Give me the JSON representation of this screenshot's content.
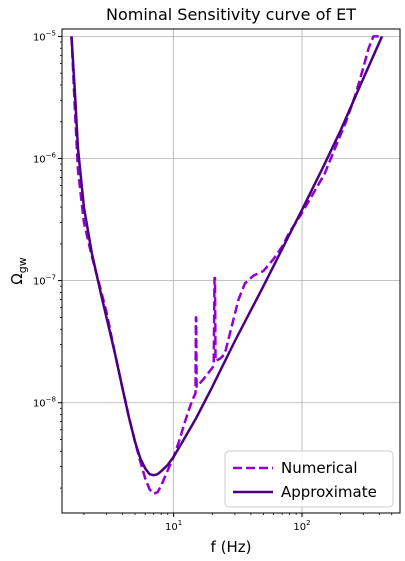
{
  "chart_data": {
    "type": "line",
    "title": "Nominal Sensitivity curve of ET",
    "xlabel": "f (Hz)",
    "ylabel": "Ωgw",
    "x_scale": "log",
    "y_scale": "log",
    "xlim": [
      1.35,
      580
    ],
    "ylim": [
      1.25e-09,
      1.15e-05
    ],
    "x_ticks": [
      {
        "value": 10,
        "base": "10",
        "exp": "1"
      },
      {
        "value": 100,
        "base": "10",
        "exp": "2"
      }
    ],
    "y_ticks": [
      {
        "value": 1e-08,
        "base": "10",
        "exp": "−8"
      },
      {
        "value": 1e-07,
        "base": "10",
        "exp": "−7"
      },
      {
        "value": 1e-06,
        "base": "10",
        "exp": "−6"
      },
      {
        "value": 1e-05,
        "base": "10",
        "exp": "−5"
      }
    ],
    "grid": true,
    "legend_position": "bottom-right",
    "series": [
      {
        "name": "Numerical",
        "color": "#9400D3",
        "style": "dashed",
        "points": [
          [
            1.6,
            1e-05
          ],
          [
            1.7,
            2.5e-06
          ],
          [
            1.8,
            8e-07
          ],
          [
            2.0,
            3e-07
          ],
          [
            2.3,
            1.6e-07
          ],
          [
            2.7,
            8.5e-08
          ],
          [
            3.0,
            5.5e-08
          ],
          [
            3.5,
            2.5e-08
          ],
          [
            4.0,
            1.3e-08
          ],
          [
            4.5,
            7.5e-09
          ],
          [
            5.0,
            4.8e-09
          ],
          [
            5.5,
            3.3e-09
          ],
          [
            6.0,
            2.4e-09
          ],
          [
            6.5,
            1.95e-09
          ],
          [
            7.0,
            1.8e-09
          ],
          [
            7.5,
            1.85e-09
          ],
          [
            8.0,
            2.1e-09
          ],
          [
            9.0,
            2.8e-09
          ],
          [
            10.0,
            3.6e-09
          ],
          [
            11.0,
            4.8e-09
          ],
          [
            12.0,
            6.5e-09
          ],
          [
            13.0,
            8.5e-09
          ],
          [
            14.0,
            1.05e-08
          ],
          [
            14.8,
            1.2e-08
          ],
          [
            14.9,
            5e-08
          ],
          [
            15.0,
            5e-08
          ],
          [
            15.1,
            1.35e-08
          ],
          [
            17.0,
            1.55e-08
          ],
          [
            19.0,
            1.8e-08
          ],
          [
            20.5,
            2e-08
          ],
          [
            20.8,
            1.05e-07
          ],
          [
            21.0,
            1.05e-07
          ],
          [
            21.2,
            2.2e-08
          ],
          [
            23.0,
            2.3e-08
          ],
          [
            25.0,
            2.5e-08
          ],
          [
            28.0,
            4e-08
          ],
          [
            32.0,
            7e-08
          ],
          [
            36.0,
            9.5e-08
          ],
          [
            42.0,
            1.1e-07
          ],
          [
            50.0,
            1.2e-07
          ],
          [
            60.0,
            1.5e-07
          ],
          [
            70.0,
            1.9e-07
          ],
          [
            80.0,
            2.5e-07
          ],
          [
            90.0,
            3e-07
          ],
          [
            100.0,
            3.6e-07
          ],
          [
            120.0,
            5e-07
          ],
          [
            150.0,
            7.5e-07
          ],
          [
            180.0,
            1.2e-06
          ],
          [
            220.0,
            2e-06
          ],
          [
            260.0,
            3.3e-06
          ],
          [
            300.0,
            5.5e-06
          ],
          [
            330.0,
            8e-06
          ],
          [
            360.0,
            1e-05
          ],
          [
            420.0,
            1e-05
          ]
        ]
      },
      {
        "name": "Approximate",
        "color": "#4B0082",
        "style": "solid",
        "points": [
          [
            1.6,
            1e-05
          ],
          [
            1.7,
            3.5e-06
          ],
          [
            1.8,
            1.2e-06
          ],
          [
            2.0,
            4e-07
          ],
          [
            2.3,
            1.7e-07
          ],
          [
            2.7,
            8e-08
          ],
          [
            3.0,
            5e-08
          ],
          [
            3.5,
            2.5e-08
          ],
          [
            4.0,
            1.3e-08
          ],
          [
            4.5,
            7.5e-09
          ],
          [
            5.0,
            4.8e-09
          ],
          [
            5.5,
            3.5e-09
          ],
          [
            6.0,
            2.9e-09
          ],
          [
            6.5,
            2.6e-09
          ],
          [
            7.0,
            2.55e-09
          ],
          [
            7.5,
            2.6e-09
          ],
          [
            8.0,
            2.75e-09
          ],
          [
            9.0,
            3.1e-09
          ],
          [
            10.0,
            3.6e-09
          ],
          [
            12.0,
            5e-09
          ],
          [
            15.0,
            7.5e-09
          ],
          [
            20.0,
            1.35e-08
          ],
          [
            30.0,
            3.2e-08
          ],
          [
            50.0,
            9e-08
          ],
          [
            80.0,
            2.4e-07
          ],
          [
            100.0,
            3.8e-07
          ],
          [
            150.0,
            9e-07
          ],
          [
            200.0,
            1.7e-06
          ],
          [
            300.0,
            4.5e-06
          ],
          [
            420.0,
            1e-05
          ]
        ]
      }
    ]
  }
}
